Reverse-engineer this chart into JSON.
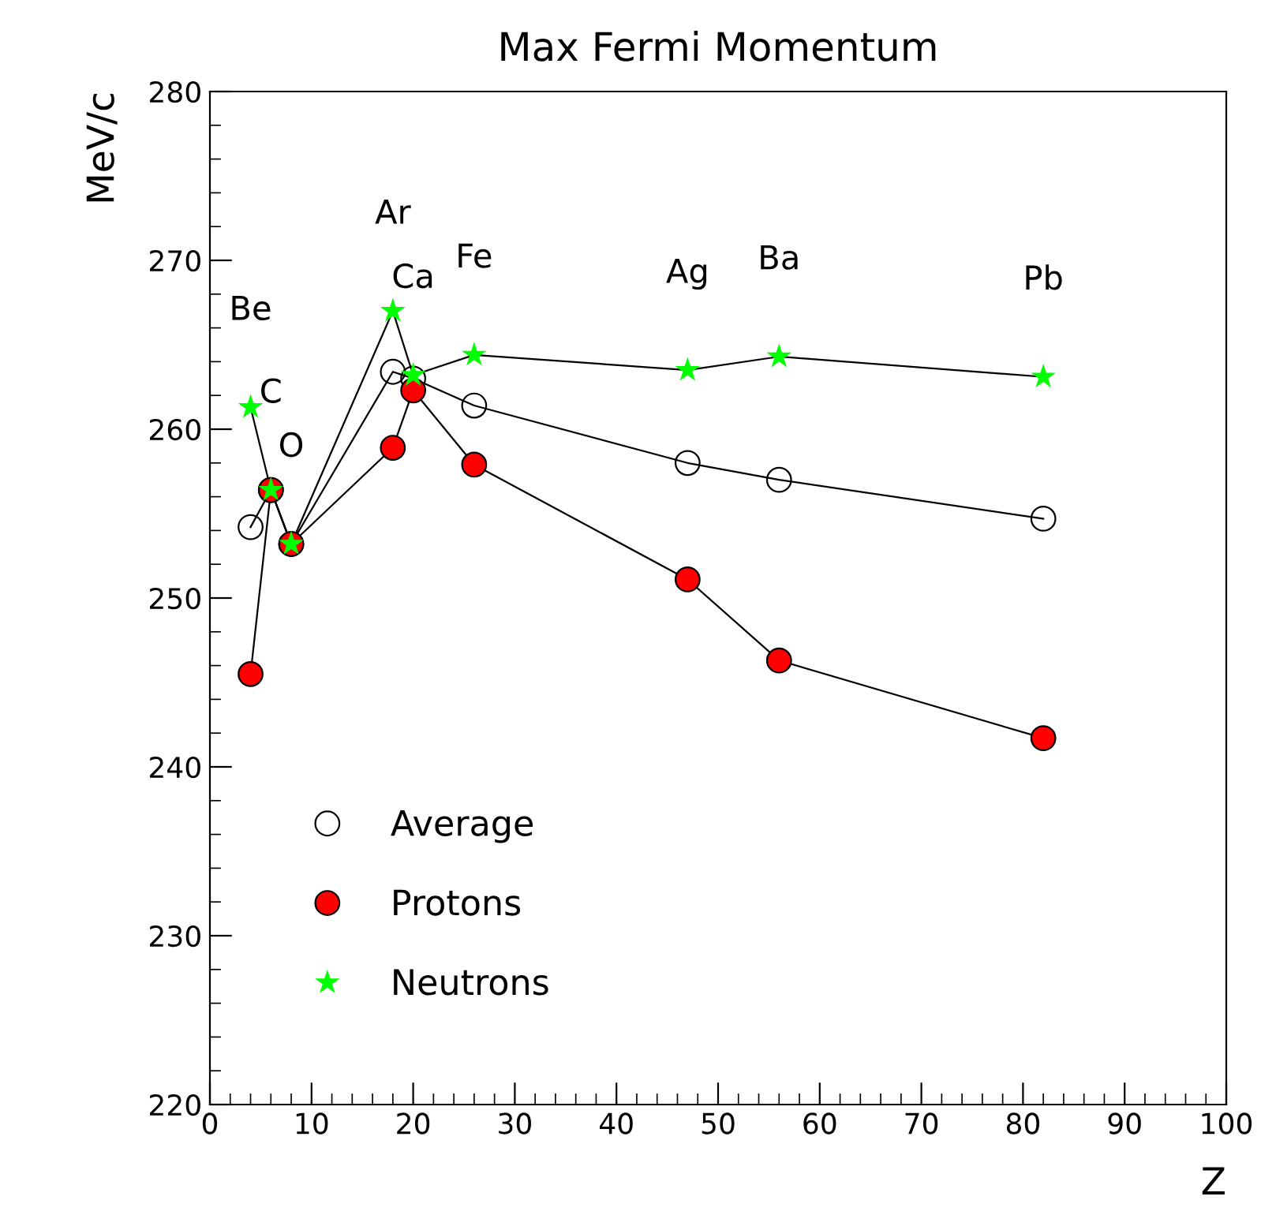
{
  "chart_data": {
    "type": "line",
    "title": "Max Fermi Momentum",
    "xlabel": "Z",
    "ylabel": "MeV/c",
    "x": [
      4,
      6,
      8,
      18,
      20,
      26,
      47,
      56,
      82
    ],
    "series": [
      {
        "name": "Average",
        "color": "#000000",
        "marker": "circle",
        "values": [
          254.2,
          256.4,
          253.2,
          263.4,
          263.0,
          261.4,
          258.0,
          257.0,
          254.7
        ]
      },
      {
        "name": "Protons",
        "color": "#ff0000",
        "marker": "circle",
        "values": [
          245.5,
          256.4,
          253.2,
          258.9,
          262.3,
          257.9,
          251.1,
          246.3,
          241.7
        ]
      },
      {
        "name": "Neutrons",
        "color": "#00ff00",
        "marker": "star",
        "values": [
          261.3,
          256.4,
          253.2,
          267.0,
          263.2,
          264.4,
          263.5,
          264.3,
          263.1
        ]
      }
    ],
    "annotations": [
      "Be",
      "C",
      "O",
      "Ar",
      "Ca",
      "Fe",
      "Ag",
      "Ba",
      "Pb"
    ],
    "xlim": [
      0,
      100
    ],
    "ylim": [
      220,
      280
    ],
    "xticks": [
      0,
      10,
      20,
      30,
      40,
      50,
      60,
      70,
      80,
      90,
      100
    ],
    "yticks": [
      220,
      230,
      240,
      250,
      260,
      270,
      280
    ],
    "grid": false,
    "legend": "bottom left",
    "line_style": "solid"
  }
}
